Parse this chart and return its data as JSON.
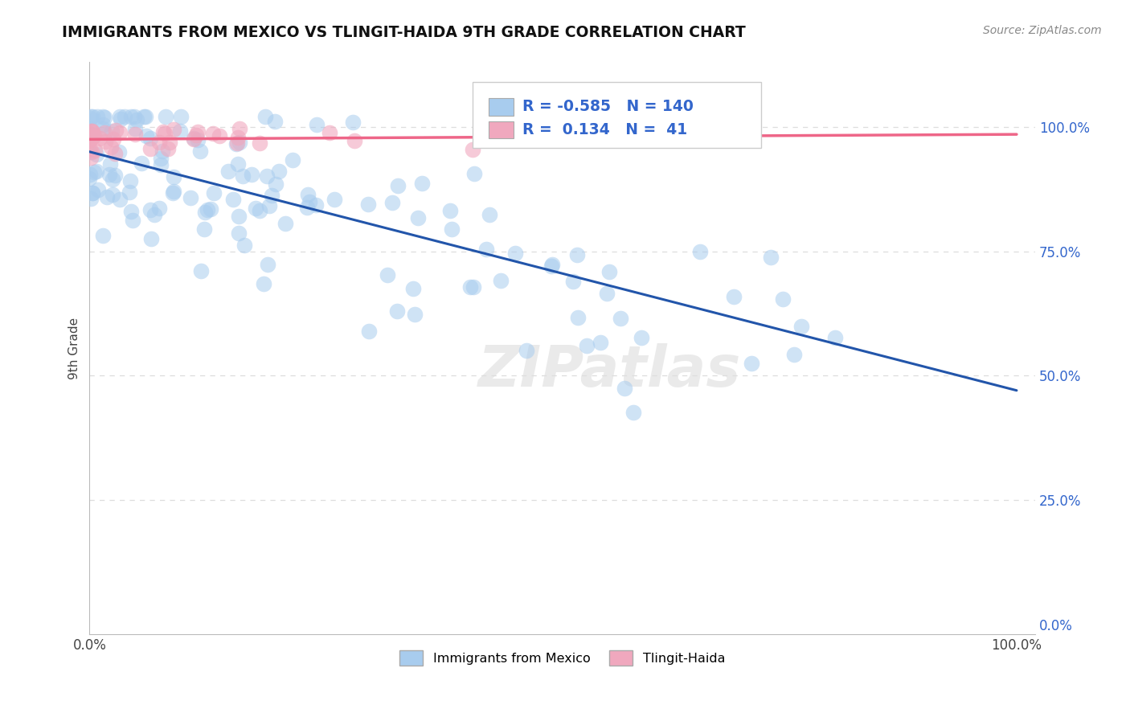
{
  "title": "IMMIGRANTS FROM MEXICO VS TLINGIT-HAIDA 9TH GRADE CORRELATION CHART",
  "source": "Source: ZipAtlas.com",
  "ylabel": "9th Grade",
  "blue_R": -0.585,
  "blue_N": 140,
  "pink_R": 0.134,
  "pink_N": 41,
  "blue_color": "#A8CCEE",
  "pink_color": "#F0A8BE",
  "blue_line_color": "#2255AA",
  "pink_line_color": "#EE6688",
  "watermark": "ZIPatlas",
  "legend_blue_label": "Immigrants from Mexico",
  "legend_pink_label": "Tlingit-Haida",
  "blue_line_x0": 0.0,
  "blue_line_y0": 0.95,
  "blue_line_x1": 1.0,
  "blue_line_y1": 0.47,
  "pink_line_x0": 0.0,
  "pink_line_y0": 0.975,
  "pink_line_x1": 1.0,
  "pink_line_y1": 0.985,
  "xlim": [
    0.0,
    1.02
  ],
  "ylim": [
    -0.02,
    1.13
  ],
  "ytick_vals": [
    0.0,
    0.25,
    0.5,
    0.75,
    1.0
  ],
  "ytick_labels": [
    "0.0%",
    "25.0%",
    "50.0%",
    "75.0%",
    "100.0%"
  ],
  "xtick_vals": [
    0.0,
    1.0
  ],
  "xtick_labels": [
    "0.0%",
    "100.0%"
  ],
  "tick_label_color": "#3366CC",
  "grid_color": "#DDDDDD"
}
